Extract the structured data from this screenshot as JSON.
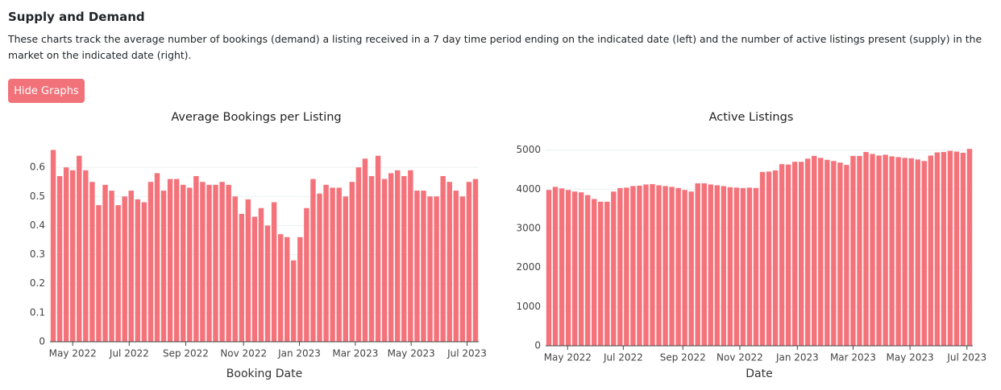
{
  "header": {
    "title": "Supply and Demand",
    "description": "These charts track the average number of bookings (demand) a listing received in a 7 day time period ending on the indicated date (left) and the number of active listings present (supply) in the market on the indicated date (right)."
  },
  "button": {
    "label": "Hide Graphs"
  },
  "chart_data": [
    {
      "type": "bar",
      "title": "Average Bookings per Listing",
      "x_label": "Booking Date",
      "color": "#f4737b",
      "grid": true,
      "values": [
        0.66,
        0.57,
        0.6,
        0.59,
        0.64,
        0.59,
        0.55,
        0.47,
        0.54,
        0.52,
        0.47,
        0.5,
        0.52,
        0.49,
        0.48,
        0.55,
        0.58,
        0.52,
        0.56,
        0.56,
        0.54,
        0.53,
        0.57,
        0.55,
        0.54,
        0.54,
        0.55,
        0.54,
        0.5,
        0.44,
        0.49,
        0.43,
        0.46,
        0.4,
        0.48,
        0.37,
        0.36,
        0.28,
        0.36,
        0.46,
        0.56,
        0.51,
        0.54,
        0.53,
        0.53,
        0.5,
        0.55,
        0.6,
        0.63,
        0.57,
        0.64,
        0.56,
        0.58,
        0.59,
        0.57,
        0.59,
        0.52,
        0.52,
        0.5,
        0.5,
        0.57,
        0.55,
        0.52,
        0.5,
        0.55,
        0.56
      ],
      "xlim": [
        -0.5,
        65.5
      ],
      "xticks": [
        {
          "value": 3,
          "label": "May 2022"
        },
        {
          "value": 11.7,
          "label": "Jul 2022"
        },
        {
          "value": 20.4,
          "label": "Sep 2022"
        },
        {
          "value": 29.3,
          "label": "Nov 2022"
        },
        {
          "value": 37.9,
          "label": "Jan 2023"
        },
        {
          "value": 46.5,
          "label": "Mar 2023"
        },
        {
          "value": 55.1,
          "label": "May 2023"
        },
        {
          "value": 63.7,
          "label": "Jul 2023"
        }
      ],
      "ylim": [
        0,
        0.7
      ],
      "yticks": [
        0,
        0.1,
        0.2,
        0.3,
        0.4,
        0.5,
        0.6
      ]
    },
    {
      "type": "bar",
      "title": "Active Listings",
      "x_label": "Date",
      "color": "#f4737b",
      "grid": true,
      "values": [
        3980,
        4060,
        4020,
        3980,
        3940,
        3920,
        3850,
        3750,
        3680,
        3680,
        3940,
        4030,
        4040,
        4080,
        4090,
        4120,
        4130,
        4100,
        4080,
        4060,
        4030,
        3980,
        3940,
        4150,
        4150,
        4120,
        4100,
        4080,
        4050,
        4040,
        4030,
        4040,
        4030,
        4440,
        4450,
        4480,
        4640,
        4630,
        4700,
        4700,
        4780,
        4850,
        4800,
        4750,
        4720,
        4680,
        4620,
        4850,
        4850,
        4950,
        4900,
        4860,
        4880,
        4840,
        4820,
        4800,
        4790,
        4760,
        4720,
        4860,
        4940,
        4950,
        4980,
        4960,
        4930,
        5030
      ],
      "xlim": [
        -0.5,
        65.5
      ],
      "xticks": [
        {
          "value": 2.9,
          "label": "May 2022"
        },
        {
          "value": 11.5,
          "label": "Jul 2022"
        },
        {
          "value": 20.7,
          "label": "Sep 2022"
        },
        {
          "value": 29.5,
          "label": "Nov 2022"
        },
        {
          "value": 38.4,
          "label": "Jan 2023"
        },
        {
          "value": 47,
          "label": "Mar 2023"
        },
        {
          "value": 55.8,
          "label": "May 2023"
        },
        {
          "value": 64.6,
          "label": "Jul 2023"
        }
      ],
      "ylim": [
        0,
        5300
      ],
      "yticks": [
        0,
        1000,
        2000,
        3000,
        4000,
        5000
      ]
    }
  ]
}
